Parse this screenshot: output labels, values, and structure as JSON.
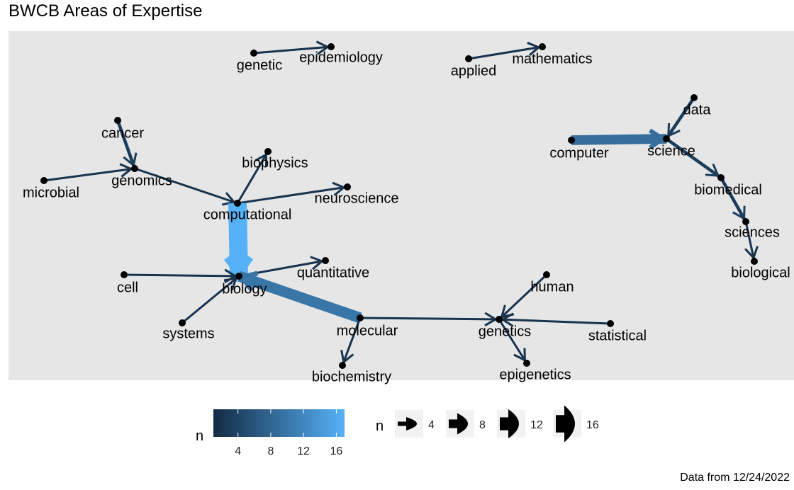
{
  "title": "BWCB Areas of Expertise",
  "caption": "Data from 12/24/2022",
  "colors": {
    "panel": "#e6e6e6",
    "low": "#132b43",
    "high": "#56b1f7",
    "node": "#000000"
  },
  "legend": {
    "color_title": "n",
    "color_ticks": [
      "4",
      "8",
      "12",
      "16"
    ],
    "color_range": [
      1,
      17
    ],
    "size_title": "n",
    "size_ticks": [
      "4",
      "8",
      "12",
      "16"
    ]
  },
  "nodes": [
    {
      "id": "genetic",
      "label": "genetic"
    },
    {
      "id": "epidemiology",
      "label": "epidemiology"
    },
    {
      "id": "applied",
      "label": "applied"
    },
    {
      "id": "mathematics",
      "label": "mathematics"
    },
    {
      "id": "cancer",
      "label": "cancer"
    },
    {
      "id": "genomics",
      "label": "genomics"
    },
    {
      "id": "microbial",
      "label": "microbial"
    },
    {
      "id": "biophysics",
      "label": "biophysics"
    },
    {
      "id": "neuroscience",
      "label": "neuroscience"
    },
    {
      "id": "computational",
      "label": "computational"
    },
    {
      "id": "data",
      "label": "data"
    },
    {
      "id": "computer",
      "label": "computer"
    },
    {
      "id": "science",
      "label": "science"
    },
    {
      "id": "biomedical",
      "label": "biomedical"
    },
    {
      "id": "sciences",
      "label": "sciences"
    },
    {
      "id": "biological",
      "label": "biological"
    },
    {
      "id": "cell",
      "label": "cell"
    },
    {
      "id": "biology",
      "label": "biology"
    },
    {
      "id": "quantitative",
      "label": "quantitative"
    },
    {
      "id": "systems",
      "label": "systems"
    },
    {
      "id": "molecular",
      "label": "molecular"
    },
    {
      "id": "human",
      "label": "human"
    },
    {
      "id": "genetics",
      "label": "genetics"
    },
    {
      "id": "statistical",
      "label": "statistical"
    },
    {
      "id": "biochemistry",
      "label": "biochemistry"
    },
    {
      "id": "epigenetics",
      "label": "epigenetics"
    }
  ],
  "edges": [
    {
      "from": "genetic",
      "to": "epidemiology",
      "n": 2
    },
    {
      "from": "applied",
      "to": "mathematics",
      "n": 2
    },
    {
      "from": "cancer",
      "to": "genomics",
      "n": 3
    },
    {
      "from": "microbial",
      "to": "genomics",
      "n": 2
    },
    {
      "from": "genomics",
      "to": "computational",
      "n": 2
    },
    {
      "from": "computational",
      "to": "biophysics",
      "n": 2
    },
    {
      "from": "computational",
      "to": "neuroscience",
      "n": 2
    },
    {
      "from": "computational",
      "to": "biology",
      "n": 17
    },
    {
      "from": "computer",
      "to": "science",
      "n": 9
    },
    {
      "from": "data",
      "to": "science",
      "n": 3
    },
    {
      "from": "science",
      "to": "biomedical",
      "n": 3
    },
    {
      "from": "biomedical",
      "to": "sciences",
      "n": 3
    },
    {
      "from": "sciences",
      "to": "biological",
      "n": 2
    },
    {
      "from": "cell",
      "to": "biology",
      "n": 2
    },
    {
      "from": "biology",
      "to": "quantitative",
      "n": 2
    },
    {
      "from": "systems",
      "to": "biology",
      "n": 2
    },
    {
      "from": "molecular",
      "to": "biology",
      "n": 10
    },
    {
      "from": "molecular",
      "to": "genetics",
      "n": 2
    },
    {
      "from": "molecular",
      "to": "biochemistry",
      "n": 2
    },
    {
      "from": "human",
      "to": "genetics",
      "n": 2
    },
    {
      "from": "statistical",
      "to": "genetics",
      "n": 2
    },
    {
      "from": "genetics",
      "to": "epigenetics",
      "n": 2
    }
  ]
}
